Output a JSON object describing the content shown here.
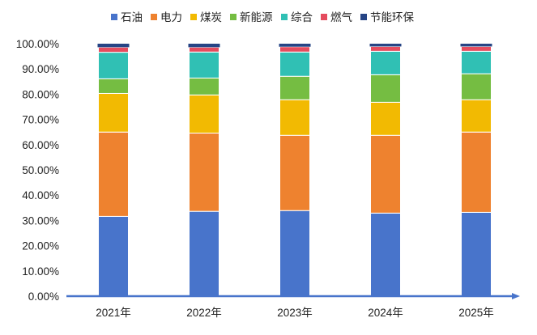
{
  "chart_data": {
    "type": "bar",
    "stacked": "percent",
    "categories": [
      "2021年",
      "2022年",
      "2023年",
      "2024年",
      "2025年"
    ],
    "series": [
      {
        "name": "石油",
        "color": "#4874CB",
        "values": [
          31.6,
          33.6,
          33.9,
          32.9,
          33.2
        ]
      },
      {
        "name": "电力",
        "color": "#EE822F",
        "values": [
          33.4,
          31.0,
          29.8,
          30.8,
          31.8
        ]
      },
      {
        "name": "煤炭",
        "color": "#F2BA02",
        "values": [
          15.3,
          15.1,
          14.1,
          13.1,
          12.8
        ]
      },
      {
        "name": "新能源",
        "color": "#75BD42",
        "values": [
          5.8,
          6.7,
          9.3,
          10.9,
          10.3
        ]
      },
      {
        "name": "综合",
        "color": "#30C0B4",
        "values": [
          10.5,
          10.3,
          9.6,
          9.3,
          8.9
        ]
      },
      {
        "name": "燃气",
        "color": "#E54C5E",
        "values": [
          2.0,
          1.9,
          2.1,
          1.9,
          1.9
        ]
      },
      {
        "name": "节能环保",
        "color": "#264485",
        "values": [
          1.4,
          1.4,
          1.2,
          1.1,
          1.1
        ]
      }
    ],
    "yticks": [
      "0.00%",
      "10.00%",
      "20.00%",
      "30.00%",
      "40.00%",
      "50.00%",
      "60.00%",
      "70.00%",
      "80.00%",
      "90.00%",
      "100.00%"
    ],
    "ylim": [
      0,
      100
    ],
    "grid": false,
    "legend": "top",
    "axis_color": "#4874CB"
  }
}
